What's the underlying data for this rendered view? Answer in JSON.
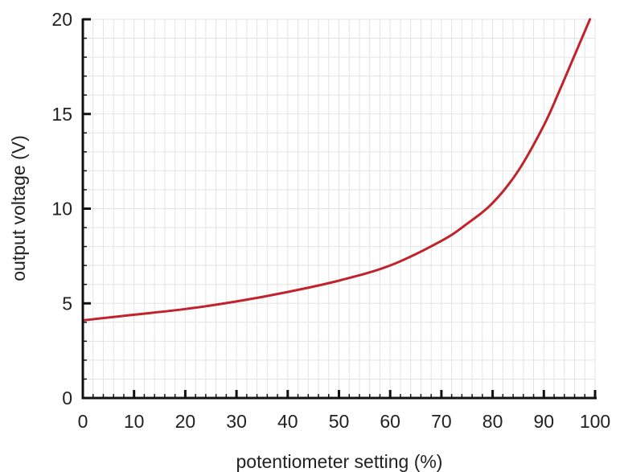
{
  "chart_data": {
    "type": "line",
    "title": "",
    "xlabel": "potentiometer setting (%)",
    "ylabel": "output voltage (V)",
    "xlim": [
      0,
      100
    ],
    "ylim": [
      0,
      20
    ],
    "x_ticks": [
      0,
      10,
      20,
      30,
      40,
      50,
      60,
      70,
      80,
      90,
      100
    ],
    "y_ticks": [
      0,
      5,
      10,
      15,
      20
    ],
    "x_minor_step": 2,
    "y_minor_step": 1,
    "grid": true,
    "legend": "none",
    "colors": {
      "line": "#c0232b",
      "grid": "#e3e3e3",
      "axis": "#111111"
    },
    "series": [
      {
        "x": [
          0,
          10,
          20,
          30,
          40,
          50,
          60,
          70,
          75,
          80,
          85,
          90,
          93,
          96,
          99
        ],
        "y": [
          4.1,
          4.4,
          4.7,
          5.1,
          5.6,
          6.2,
          7.0,
          8.3,
          9.2,
          10.3,
          12.0,
          14.4,
          16.2,
          18.1,
          20.0
        ]
      }
    ]
  }
}
